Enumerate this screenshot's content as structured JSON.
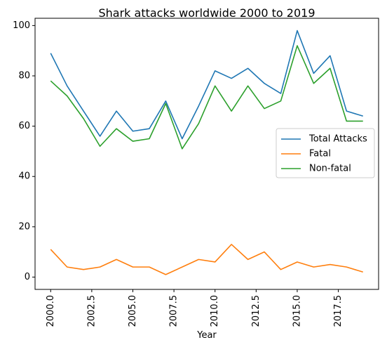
{
  "chart_data": {
    "type": "line",
    "title": "Shark attacks worldwide 2000 to 2019",
    "xlabel": "Year",
    "ylabel": "",
    "x": [
      2000,
      2001,
      2002,
      2003,
      2004,
      2005,
      2006,
      2007,
      2008,
      2009,
      2010,
      2011,
      2012,
      2013,
      2014,
      2015,
      2016,
      2017,
      2018,
      2019
    ],
    "series": [
      {
        "name": "Total Attacks",
        "color": "#1f77b4",
        "values": [
          89,
          76,
          66,
          56,
          66,
          58,
          59,
          70,
          55,
          68,
          82,
          79,
          83,
          77,
          73,
          98,
          81,
          88,
          66,
          64
        ]
      },
      {
        "name": "Fatal",
        "color": "#ff7f0e",
        "values": [
          11,
          4,
          3,
          4,
          7,
          4,
          4,
          1,
          4,
          7,
          6,
          13,
          7,
          10,
          3,
          6,
          4,
          5,
          4,
          2
        ]
      },
      {
        "name": "Non-fatal",
        "color": "#2ca02c",
        "values": [
          78,
          72,
          63,
          52,
          59,
          54,
          55,
          69,
          51,
          61,
          76,
          66,
          76,
          67,
          70,
          92,
          77,
          83,
          62,
          62
        ]
      }
    ],
    "xlim": [
      1999.05,
      2019.95
    ],
    "ylim": [
      -4.9,
      102.9
    ],
    "xticks": [
      2000.0,
      2002.5,
      2005.0,
      2007.5,
      2010.0,
      2012.5,
      2015.0,
      2017.5
    ],
    "xtick_labels": [
      "2000.0",
      "2002.5",
      "2005.0",
      "2007.5",
      "2010.0",
      "2012.5",
      "2015.0",
      "2017.5"
    ],
    "yticks": [
      0,
      20,
      40,
      60,
      80,
      100
    ],
    "ytick_labels": [
      "0",
      "20",
      "40",
      "60",
      "80",
      "100"
    ],
    "grid": false,
    "legend_position": "center-right"
  }
}
